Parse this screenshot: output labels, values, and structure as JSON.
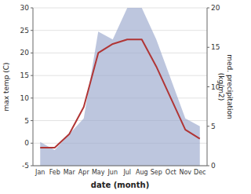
{
  "chart_data": {
    "type": "line",
    "categories": [
      "Jan",
      "Feb",
      "Mar",
      "Apr",
      "May",
      "Jun",
      "Jul",
      "Aug",
      "Sep",
      "Oct",
      "Nov",
      "Dec"
    ],
    "series": [
      {
        "type": "area",
        "axis": "y2",
        "color": "#99a8cc",
        "values": [
          3,
          2,
          4,
          6,
          17,
          16,
          20,
          20,
          16,
          11,
          6,
          5
        ]
      },
      {
        "type": "line",
        "color": "#b03535",
        "values": [
          -1,
          -1,
          2,
          8,
          20,
          22,
          23,
          23,
          17,
          10,
          3,
          1
        ]
      }
    ],
    "xlabel": "date (month)",
    "ylabel": "max temp (C)",
    "y2label": "med. precipitation\n(kg/m2)",
    "ylim": [
      -5,
      30
    ],
    "yticks": [
      -5,
      0,
      5,
      10,
      15,
      20,
      25,
      30
    ],
    "y2lim": [
      0,
      20
    ],
    "y2ticks": [
      0,
      5,
      10,
      15,
      20
    ],
    "grid": true
  }
}
